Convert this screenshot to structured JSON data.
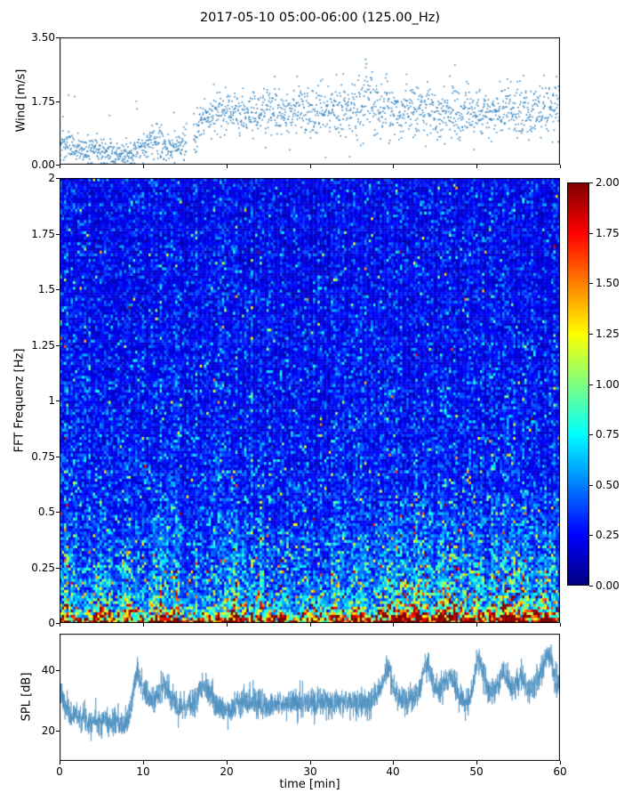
{
  "title": "2017-05-10 05:00-06:00 (125.00_Hz)",
  "xlabel": "time [min]",
  "x_ticks": {
    "values": [
      0,
      10,
      20,
      30,
      40,
      50,
      60
    ],
    "labels": [
      "0",
      "10",
      "20",
      "30",
      "40",
      "50",
      "60"
    ]
  },
  "chart_data": [
    {
      "type": "scatter",
      "name": "wind-speed",
      "ylabel": "Wind [m/s]",
      "xlim": [
        0,
        60
      ],
      "ylim": [
        0,
        3.5
      ],
      "yticks": {
        "values": [
          0,
          1.75,
          3.5
        ],
        "labels": [
          "0.00",
          "1.75",
          "3.50"
        ]
      },
      "marker_color": "#2e7ebc",
      "points_per_sample": 3,
      "sample_step_min": 0.1,
      "gap_x": [
        15.25,
        16.05
      ],
      "outlier_prob": 0.02,
      "trend_mean_spread": [
        [
          0,
          0.55,
          0.22
        ],
        [
          2,
          0.45,
          0.2
        ],
        [
          4,
          0.4,
          0.18
        ],
        [
          6,
          0.3,
          0.15
        ],
        [
          8,
          0.22,
          0.12
        ],
        [
          9,
          0.35,
          0.18
        ],
        [
          10,
          0.5,
          0.2
        ],
        [
          11,
          0.6,
          0.22
        ],
        [
          12,
          0.6,
          0.25
        ],
        [
          13,
          0.45,
          0.2
        ],
        [
          14,
          0.5,
          0.22
        ],
        [
          15,
          0.55,
          0.3
        ],
        [
          16,
          0.8,
          0.35
        ],
        [
          17,
          1.2,
          0.3
        ],
        [
          18,
          1.35,
          0.28
        ],
        [
          20,
          1.45,
          0.3
        ],
        [
          22,
          1.4,
          0.32
        ],
        [
          25,
          1.5,
          0.35
        ],
        [
          28,
          1.45,
          0.35
        ],
        [
          30,
          1.5,
          0.38
        ],
        [
          33,
          1.6,
          0.42
        ],
        [
          35,
          1.55,
          0.42
        ],
        [
          37,
          1.65,
          0.48
        ],
        [
          39,
          1.5,
          0.4
        ],
        [
          42,
          1.45,
          0.36
        ],
        [
          45,
          1.45,
          0.34
        ],
        [
          48,
          1.4,
          0.34
        ],
        [
          50,
          1.4,
          0.34
        ],
        [
          52,
          1.45,
          0.34
        ],
        [
          54,
          1.5,
          0.36
        ],
        [
          56,
          1.45,
          0.36
        ],
        [
          58,
          1.5,
          0.4
        ],
        [
          60,
          1.65,
          0.5
        ]
      ]
    },
    {
      "type": "heatmap",
      "name": "fft-spectrogram",
      "ylabel": "FFT Frequenz [Hz]",
      "xlim": [
        0,
        60
      ],
      "ylim": [
        0,
        2
      ],
      "yticks": {
        "values": [
          0,
          0.25,
          0.5,
          0.75,
          1,
          1.25,
          1.5,
          1.75,
          2
        ],
        "labels": [
          "0",
          "0.25",
          "0.5",
          "0.75",
          "1",
          "1.25",
          "1.5",
          "1.75",
          "2"
        ]
      },
      "colormap": "jet",
      "clim": [
        0,
        2
      ],
      "colorbar_ticks": {
        "values": [
          0,
          0.25,
          0.5,
          0.75,
          1,
          1.25,
          1.5,
          1.75,
          2
        ],
        "labels": [
          "0.00",
          "0.25",
          "0.50",
          "0.75",
          "1.00",
          "1.25",
          "1.50",
          "1.75",
          "2.00"
        ]
      },
      "grid": {
        "nx": 225,
        "ny": 160
      },
      "noise_sigma": 0.48,
      "bright_dash_prob": 0.025,
      "bright_dash_gain": 2.2,
      "freq_profile": [
        [
          0,
          1.7
        ],
        [
          0.01,
          1.5
        ],
        [
          0.02,
          1.2
        ],
        [
          0.04,
          0.9
        ],
        [
          0.06,
          0.7
        ],
        [
          0.08,
          0.6
        ],
        [
          0.1,
          0.52
        ],
        [
          0.15,
          0.45
        ],
        [
          0.2,
          0.4
        ],
        [
          0.25,
          0.38
        ],
        [
          0.3,
          0.35
        ],
        [
          0.4,
          0.32
        ],
        [
          0.5,
          0.3
        ],
        [
          0.6,
          0.28
        ],
        [
          0.75,
          0.27
        ],
        [
          1.0,
          0.25
        ],
        [
          1.25,
          0.24
        ],
        [
          1.5,
          0.23
        ],
        [
          1.75,
          0.22
        ],
        [
          2.0,
          0.22
        ]
      ],
      "hot_columns": [
        [
          1,
          0.8,
          0.5
        ],
        [
          5,
          1.0,
          0.7
        ],
        [
          8,
          0.8,
          0.5
        ],
        [
          12,
          0.8,
          0.8
        ],
        [
          14,
          0.6,
          0.5
        ],
        [
          21,
          1.0,
          0.9
        ],
        [
          24,
          0.7,
          0.5
        ],
        [
          27,
          0.6,
          0.4
        ],
        [
          30,
          0.8,
          0.5
        ],
        [
          33,
          0.6,
          0.5
        ],
        [
          36,
          0.8,
          0.6
        ],
        [
          39,
          0.8,
          0.7
        ],
        [
          41,
          1.0,
          0.8
        ],
        [
          43,
          1.2,
          1.0
        ],
        [
          46,
          1.2,
          0.9
        ],
        [
          48,
          0.8,
          0.6
        ],
        [
          50,
          0.8,
          0.7
        ],
        [
          53,
          1.0,
          0.8
        ],
        [
          55,
          1.2,
          0.9
        ],
        [
          58,
          1.0,
          0.9
        ]
      ],
      "hot_freq_cutoff": 0.7
    },
    {
      "type": "line",
      "name": "spl",
      "ylabel": "SPL [dB]",
      "xlim": [
        0,
        60
      ],
      "ylim": [
        10,
        52
      ],
      "yticks": {
        "values": [
          20,
          40
        ],
        "labels": [
          "20",
          "40"
        ]
      },
      "line_color": "#4a8fbf",
      "noise_db": 2.2,
      "samples": 3000,
      "trend": [
        [
          0,
          34
        ],
        [
          0.3,
          31
        ],
        [
          0.8,
          27
        ],
        [
          1.5,
          25
        ],
        [
          2,
          26
        ],
        [
          2.5,
          24
        ],
        [
          3,
          25
        ],
        [
          3.5,
          23
        ],
        [
          4,
          24
        ],
        [
          5,
          23
        ],
        [
          5.5,
          24
        ],
        [
          6,
          22
        ],
        [
          6.5,
          23
        ],
        [
          7,
          22
        ],
        [
          7.5,
          21
        ],
        [
          8,
          23
        ],
        [
          8.5,
          26
        ],
        [
          9,
          36
        ],
        [
          9.3,
          41
        ],
        [
          9.7,
          37
        ],
        [
          10,
          34
        ],
        [
          10.5,
          31
        ],
        [
          11,
          30
        ],
        [
          11.5,
          31
        ],
        [
          12,
          33
        ],
        [
          12.5,
          35
        ],
        [
          13,
          33
        ],
        [
          13.5,
          30
        ],
        [
          14,
          29
        ],
        [
          15,
          28
        ],
        [
          16,
          29
        ],
        [
          16.5,
          31
        ],
        [
          17,
          33
        ],
        [
          17.5,
          34
        ],
        [
          18,
          32
        ],
        [
          18.5,
          30
        ],
        [
          19,
          28
        ],
        [
          20,
          27
        ],
        [
          21,
          28
        ],
        [
          22,
          29
        ],
        [
          23,
          30
        ],
        [
          24,
          29
        ],
        [
          25,
          28
        ],
        [
          26,
          29
        ],
        [
          27,
          29
        ],
        [
          28,
          30
        ],
        [
          29,
          29
        ],
        [
          30,
          29
        ],
        [
          31,
          29
        ],
        [
          32,
          30
        ],
        [
          33,
          29
        ],
        [
          34,
          30
        ],
        [
          35,
          30
        ],
        [
          36,
          29
        ],
        [
          37,
          30
        ],
        [
          38,
          31
        ],
        [
          38.7,
          36
        ],
        [
          39,
          39
        ],
        [
          39.4,
          40
        ],
        [
          40,
          35
        ],
        [
          40.5,
          31
        ],
        [
          41,
          30
        ],
        [
          42,
          30
        ],
        [
          43,
          32
        ],
        [
          43.7,
          40
        ],
        [
          44,
          42
        ],
        [
          44.5,
          39
        ],
        [
          45,
          34
        ],
        [
          45.5,
          33
        ],
        [
          46,
          34
        ],
        [
          46.7,
          38
        ],
        [
          47,
          38
        ],
        [
          47.5,
          34
        ],
        [
          48,
          31
        ],
        [
          48.5,
          30
        ],
        [
          49,
          29
        ],
        [
          49.5,
          33
        ],
        [
          50,
          43
        ],
        [
          50.3,
          45
        ],
        [
          50.8,
          39
        ],
        [
          51.3,
          33
        ],
        [
          52,
          33
        ],
        [
          52.5,
          35
        ],
        [
          53,
          39
        ],
        [
          53.3,
          40
        ],
        [
          53.8,
          36
        ],
        [
          54.3,
          33
        ],
        [
          55,
          37
        ],
        [
          55.4,
          38
        ],
        [
          56,
          34
        ],
        [
          56.5,
          34
        ],
        [
          57,
          36
        ],
        [
          57.5,
          38
        ],
        [
          58,
          41
        ],
        [
          58.4,
          44
        ],
        [
          58.8,
          45
        ],
        [
          59.2,
          40
        ],
        [
          59.6,
          37
        ],
        [
          60,
          35
        ]
      ]
    }
  ]
}
